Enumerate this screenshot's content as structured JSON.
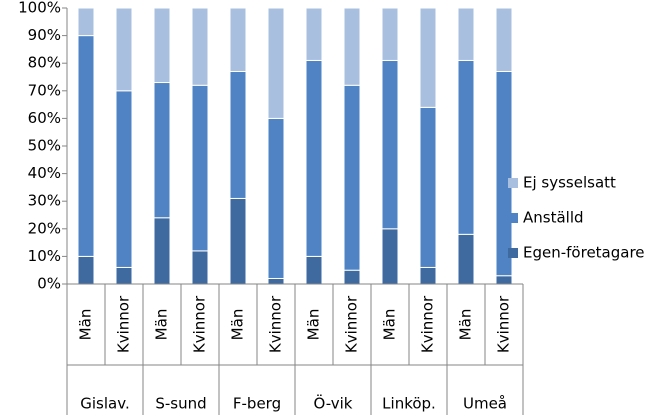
{
  "chart_data": {
    "type": "stacked_bar_100",
    "groups": [
      "Gislav.",
      "S-sund",
      "F-berg",
      "Ö-vik",
      "Linköp.",
      "Umeå"
    ],
    "categories": [
      "Män",
      "Kvinnor",
      "Män",
      "Kvinnor",
      "Män",
      "Kvinnor",
      "Män",
      "Kvinnor",
      "Män",
      "Kvinnor",
      "Män",
      "Kvinnor"
    ],
    "series": [
      {
        "name": "Egen-företagare",
        "color": "#3f6aa0",
        "values": [
          10,
          6,
          24,
          12,
          31,
          2,
          10,
          5,
          20,
          6,
          18,
          3
        ]
      },
      {
        "name": "Anställd",
        "color": "#4f83c4",
        "values": [
          80,
          64,
          49,
          60,
          46,
          58,
          71,
          67,
          61,
          58,
          63,
          74
        ]
      },
      {
        "name": "Ej sysselsatt",
        "color": "#a9bfe0",
        "values": [
          10,
          30,
          27,
          28,
          23,
          40,
          19,
          28,
          19,
          36,
          19,
          23
        ]
      }
    ],
    "ylim": [
      0,
      100
    ],
    "yticks": [
      {
        "value": 0,
        "label": "0%"
      },
      {
        "value": 10,
        "label": "10%"
      },
      {
        "value": 20,
        "label": "20%"
      },
      {
        "value": 30,
        "label": "30%"
      },
      {
        "value": 40,
        "label": "40%"
      },
      {
        "value": 50,
        "label": "50%"
      },
      {
        "value": 60,
        "label": "60%"
      },
      {
        "value": 70,
        "label": "70%"
      },
      {
        "value": 80,
        "label": "80%"
      },
      {
        "value": 90,
        "label": "90%"
      },
      {
        "value": 100,
        "label": "100%"
      }
    ],
    "grid": false,
    "legend": "right"
  }
}
